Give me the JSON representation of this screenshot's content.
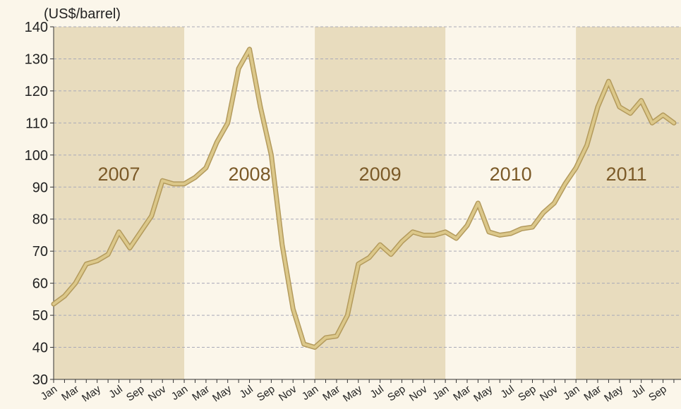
{
  "chart_data": {
    "type": "line",
    "y_label": "(US$/barrel)",
    "years": [
      "2007",
      "2008",
      "2009",
      "2010",
      "2011"
    ],
    "categories": [
      "Jan",
      null,
      "Mar",
      null,
      "May",
      null,
      "Jul",
      null,
      "Sep",
      null,
      "Nov",
      null,
      "Jan",
      null,
      "Mar",
      null,
      "May",
      null,
      "Jul",
      null,
      "Sep",
      null,
      "Nov",
      null,
      "Jan",
      null,
      "Mar",
      null,
      "May",
      null,
      "Jul",
      null,
      "Sep",
      null,
      "Nov",
      null,
      "Jan",
      null,
      "Mar",
      null,
      "May",
      null,
      "Jul",
      null,
      "Sep",
      null,
      "Nov",
      null,
      "Jan",
      null,
      "Mar",
      null,
      "May",
      null,
      "Jul",
      null,
      "Sep",
      null
    ],
    "series": [
      {
        "color": "#dcc88a",
        "values": [
          53.5,
          56,
          60,
          66,
          67,
          69,
          76,
          71,
          76,
          81,
          92,
          91,
          91,
          93,
          96,
          104,
          110,
          127,
          133,
          115,
          100,
          72,
          52,
          41,
          40,
          43,
          43.5,
          50,
          66,
          68,
          72,
          69,
          73,
          76,
          75,
          75,
          76,
          74,
          78,
          85,
          76,
          75,
          75.5,
          77,
          77.5,
          82,
          85,
          91,
          96,
          103,
          115,
          123,
          115,
          113,
          117,
          110,
          112.5,
          110
        ]
      }
    ],
    "ylim": [
      30,
      140
    ],
    "yticks": [
      30,
      40,
      50,
      60,
      70,
      80,
      90,
      100,
      110,
      120,
      130,
      140
    ],
    "grid": true,
    "band_color": "#e8dcbe"
  }
}
